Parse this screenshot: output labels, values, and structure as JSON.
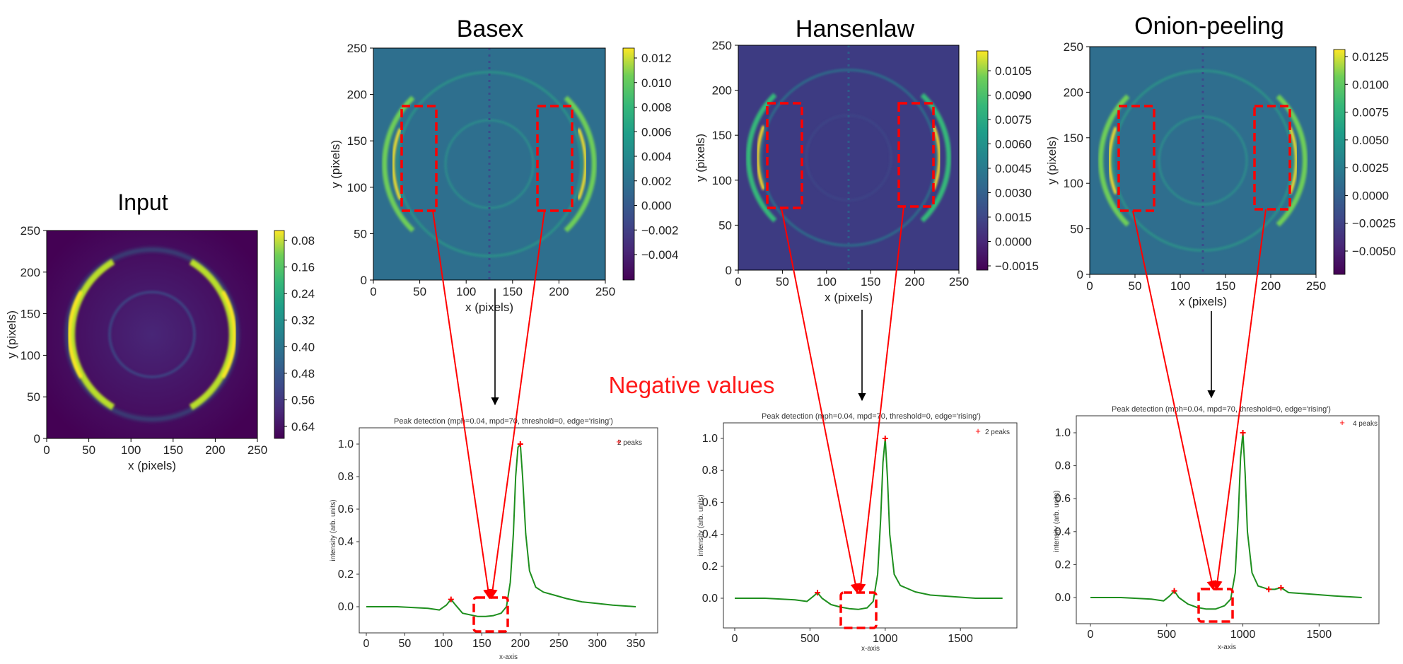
{
  "colors": {
    "viridis_top": "#fde725",
    "viridis_mid": "#21918c",
    "viridis_bottom": "#440154",
    "annotation_red": "#ff0000",
    "curve_green": "#1e8f1e"
  },
  "annotation": {
    "label": "Negative values"
  },
  "chart_data": [
    {
      "id": "input",
      "type": "heatmap",
      "title": "Input",
      "xlabel": "x (pixels)",
      "ylabel": "y (pixels)",
      "xlim": [
        0,
        250
      ],
      "ylim": [
        0,
        250
      ],
      "xticks": [
        "0",
        "50",
        "100",
        "150",
        "200",
        "250"
      ],
      "yticks": [
        "0",
        "50",
        "100",
        "150",
        "200",
        "250"
      ],
      "colorbar_ticks": [
        "0.08",
        "0.16",
        "0.24",
        "0.32",
        "0.40",
        "0.48",
        "0.56",
        "0.64"
      ]
    },
    {
      "id": "basex",
      "type": "heatmap",
      "title": "Basex",
      "xlabel": "x (pixels)",
      "ylabel": "y (pixels)",
      "xlim": [
        0,
        250
      ],
      "ylim": [
        0,
        250
      ],
      "xticks": [
        "0",
        "50",
        "100",
        "150",
        "200",
        "250"
      ],
      "yticks": [
        "0",
        "50",
        "100",
        "150",
        "200",
        "250"
      ],
      "colorbar_ticks": [
        "0.012",
        "0.010",
        "0.008",
        "0.006",
        "0.004",
        "0.002",
        "0.000",
        "−0.002",
        "−0.004"
      ]
    },
    {
      "id": "hansenlaw",
      "type": "heatmap",
      "title": "Hansenlaw",
      "xlabel": "x (pixels)",
      "ylabel": "y (pixels)",
      "xlim": [
        0,
        250
      ],
      "ylim": [
        0,
        250
      ],
      "xticks": [
        "0",
        "50",
        "100",
        "150",
        "200",
        "250"
      ],
      "yticks": [
        "0",
        "50",
        "100",
        "150",
        "200",
        "250"
      ],
      "colorbar_ticks": [
        "0.0105",
        "0.0090",
        "0.0075",
        "0.0060",
        "0.0045",
        "0.0030",
        "0.0015",
        "0.0000",
        "−0.0015"
      ]
    },
    {
      "id": "onion",
      "type": "heatmap",
      "title": "Onion-peeling",
      "xlabel": "x (pixels)",
      "ylabel": "y (pixels)",
      "xlim": [
        0,
        250
      ],
      "ylim": [
        0,
        250
      ],
      "xticks": [
        "0",
        "50",
        "100",
        "150",
        "200",
        "250"
      ],
      "yticks": [
        "0",
        "50",
        "100",
        "150",
        "200",
        "250"
      ],
      "colorbar_ticks": [
        "0.0125",
        "0.0100",
        "0.0075",
        "0.0050",
        "0.0025",
        "0.0000",
        "−0.0025",
        "−0.0050"
      ]
    },
    {
      "id": "peak_basex",
      "type": "line",
      "title": "Peak detection (mph=0.04, mpd=70, threshold=0, edge='rising')",
      "xlabel": "x-axis",
      "ylabel": "intensity (arb. units)",
      "legend": "2 peaks",
      "xlim": [
        0,
        360
      ],
      "ylim": [
        -0.15,
        1.1
      ],
      "xticks": [
        "0",
        "50",
        "100",
        "150",
        "200",
        "250",
        "300",
        "350"
      ],
      "yticks": [
        "0.0",
        "0.2",
        "0.4",
        "0.6",
        "0.8",
        "1.0"
      ],
      "x": [
        0,
        40,
        80,
        95,
        104,
        110,
        116,
        125,
        135,
        145,
        155,
        165,
        175,
        182,
        187,
        191,
        194,
        197,
        200,
        203,
        207,
        212,
        220,
        230,
        245,
        260,
        280,
        300,
        320,
        350
      ],
      "y": [
        0.0,
        0.0,
        -0.01,
        -0.02,
        0.01,
        0.045,
        0.01,
        -0.04,
        -0.05,
        -0.06,
        -0.06,
        -0.055,
        -0.04,
        0.0,
        0.15,
        0.45,
        0.8,
        0.98,
        1.0,
        0.8,
        0.45,
        0.22,
        0.12,
        0.09,
        0.07,
        0.05,
        0.03,
        0.02,
        0.01,
        0.0
      ],
      "peaks_x": [
        110,
        200
      ],
      "peaks_y": [
        0.045,
        1.0
      ]
    },
    {
      "id": "peak_hansenlaw",
      "type": "line",
      "title": "Peak detection (mph=0.04, mpd=70, threshold=0, edge='rising')",
      "xlabel": "x-axis",
      "ylabel": "intensity (arb. units)",
      "legend": "2 peaks",
      "xlim": [
        0,
        1800
      ],
      "ylim": [
        -0.15,
        1.1
      ],
      "xticks": [
        "0",
        "500",
        "1000",
        "1500"
      ],
      "yticks": [
        "0.0",
        "0.2",
        "0.4",
        "0.6",
        "0.8",
        "1.0"
      ],
      "x": [
        0,
        200,
        400,
        480,
        520,
        550,
        580,
        640,
        700,
        760,
        820,
        880,
        920,
        950,
        970,
        985,
        1000,
        1015,
        1030,
        1060,
        1100,
        1200,
        1300,
        1450,
        1600,
        1780
      ],
      "y": [
        0.0,
        0.0,
        -0.01,
        -0.02,
        0.01,
        0.035,
        0.0,
        -0.04,
        -0.055,
        -0.065,
        -0.07,
        -0.06,
        -0.02,
        0.15,
        0.5,
        0.85,
        1.0,
        0.75,
        0.4,
        0.15,
        0.08,
        0.04,
        0.02,
        0.01,
        0.0,
        0.0
      ],
      "peaks_x": [
        550,
        1000
      ],
      "peaks_y": [
        0.035,
        1.0
      ]
    },
    {
      "id": "peak_onion",
      "type": "line",
      "title": "Peak detection (mph=0.04, mpd=70, threshold=0, edge='rising')",
      "xlabel": "x-axis",
      "ylabel": "intensity (arb. units)",
      "legend": "4 peaks",
      "xlim": [
        0,
        1800
      ],
      "ylim": [
        -0.15,
        1.1
      ],
      "xticks": [
        "0",
        "500",
        "1000",
        "1500"
      ],
      "yticks": [
        "0.0",
        "0.2",
        "0.4",
        "0.6",
        "0.8",
        "1.0"
      ],
      "x": [
        0,
        200,
        400,
        480,
        520,
        550,
        580,
        640,
        700,
        760,
        820,
        880,
        920,
        950,
        970,
        985,
        1000,
        1015,
        1030,
        1060,
        1100,
        1170,
        1210,
        1250,
        1300,
        1450,
        1600,
        1780
      ],
      "y": [
        0.0,
        0.0,
        -0.01,
        -0.02,
        0.01,
        0.04,
        0.0,
        -0.04,
        -0.06,
        -0.07,
        -0.07,
        -0.05,
        -0.01,
        0.15,
        0.5,
        0.85,
        1.0,
        0.75,
        0.4,
        0.15,
        0.07,
        0.05,
        0.05,
        0.06,
        0.03,
        0.02,
        0.01,
        0.0
      ],
      "peaks_x": [
        550,
        1000,
        1170,
        1250
      ],
      "peaks_y": [
        0.04,
        1.0,
        0.05,
        0.06
      ]
    }
  ]
}
